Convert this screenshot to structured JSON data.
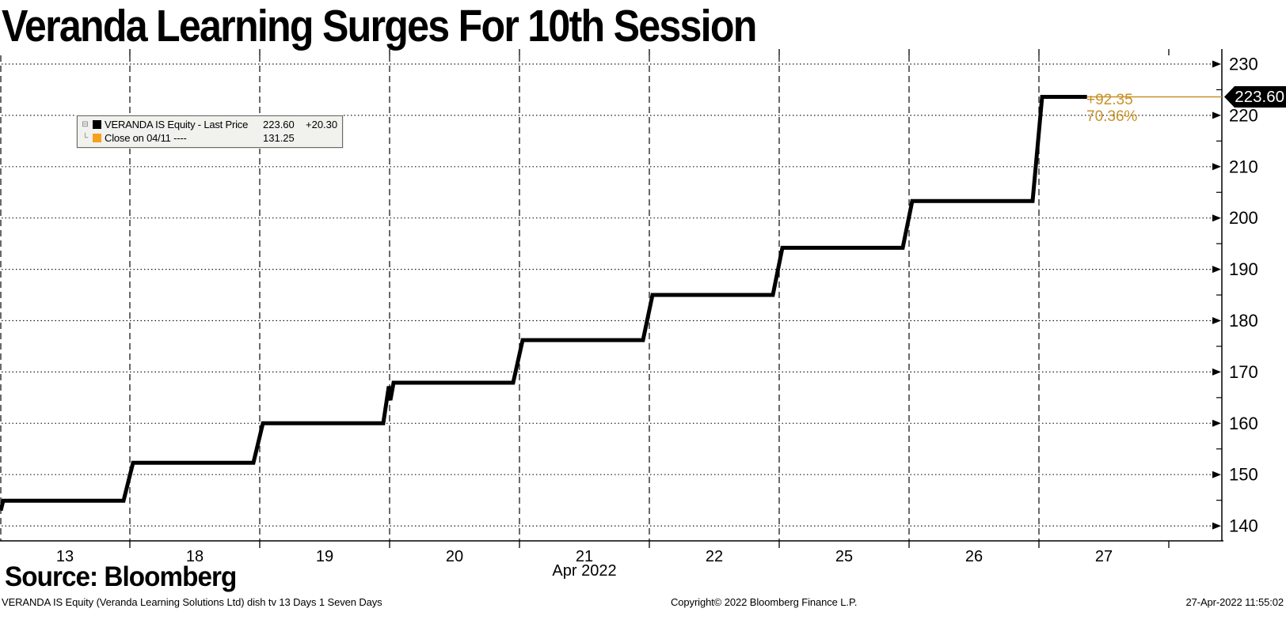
{
  "title": "Veranda Learning Surges For 10th Session",
  "source_label": "Source: Bloomberg",
  "legend": {
    "rows": [
      {
        "tree_icon": "⊟",
        "swatch_color": "#000000",
        "label": "VERANDA IS Equity - Last Price",
        "value": "223.60",
        "change": "+20.30"
      },
      {
        "tree_icon": "└",
        "swatch_color": "#f5a01e",
        "label": "Close on 04/11 ----",
        "value": "131.25",
        "change": ""
      }
    ]
  },
  "annotation": {
    "net_change": "+92.35",
    "pct_change": "70.36%"
  },
  "price_tag": {
    "value": "223.60"
  },
  "footer": {
    "left": "VERANDA IS Equity (Veranda Learning Solutions Ltd) dish tv 13 Days 1 Seven Days",
    "center": "Copyright© 2022 Bloomberg Finance L.P.",
    "right": "27-Apr-2022 11:55:02"
  },
  "colors": {
    "accent_orange": "#c8912a",
    "legend_orange": "#f5a01e",
    "line_black": "#000000",
    "grid_color": "#1a1a1a",
    "legend_bg": "#f1f1ee"
  },
  "chart_data": {
    "type": "line",
    "style": "step",
    "title": "Veranda Learning Surges For 10th Session",
    "xlabel": "Apr 2022",
    "x_categories": [
      "13",
      "18",
      "19",
      "20",
      "21",
      "22",
      "25",
      "26",
      "27"
    ],
    "series": [
      {
        "name": "VERANDA IS Equity - Last Price",
        "color": "#000000",
        "start": 143.0,
        "values": [
          144.9,
          152.3,
          160.0,
          167.9,
          176.2,
          185.0,
          194.2,
          203.3,
          223.6
        ]
      }
    ],
    "open_notch": {
      "day": "20",
      "peak": 167.2,
      "dip": 164.5
    },
    "intraday_fraction": 0.37,
    "last_price": 223.6,
    "net_change": "+20.30",
    "prev_close": 203.3,
    "reference_close": {
      "date": "04/11",
      "value": 131.25
    },
    "y_axis": {
      "ticks": [
        230,
        220,
        210,
        200,
        190,
        180,
        170,
        160,
        150,
        140
      ],
      "minor_interval": 5,
      "range": [
        137,
        233
      ]
    },
    "grid": {
      "horizontal": "dotted",
      "vertical": "dashed"
    },
    "legend_position": "top-left"
  }
}
